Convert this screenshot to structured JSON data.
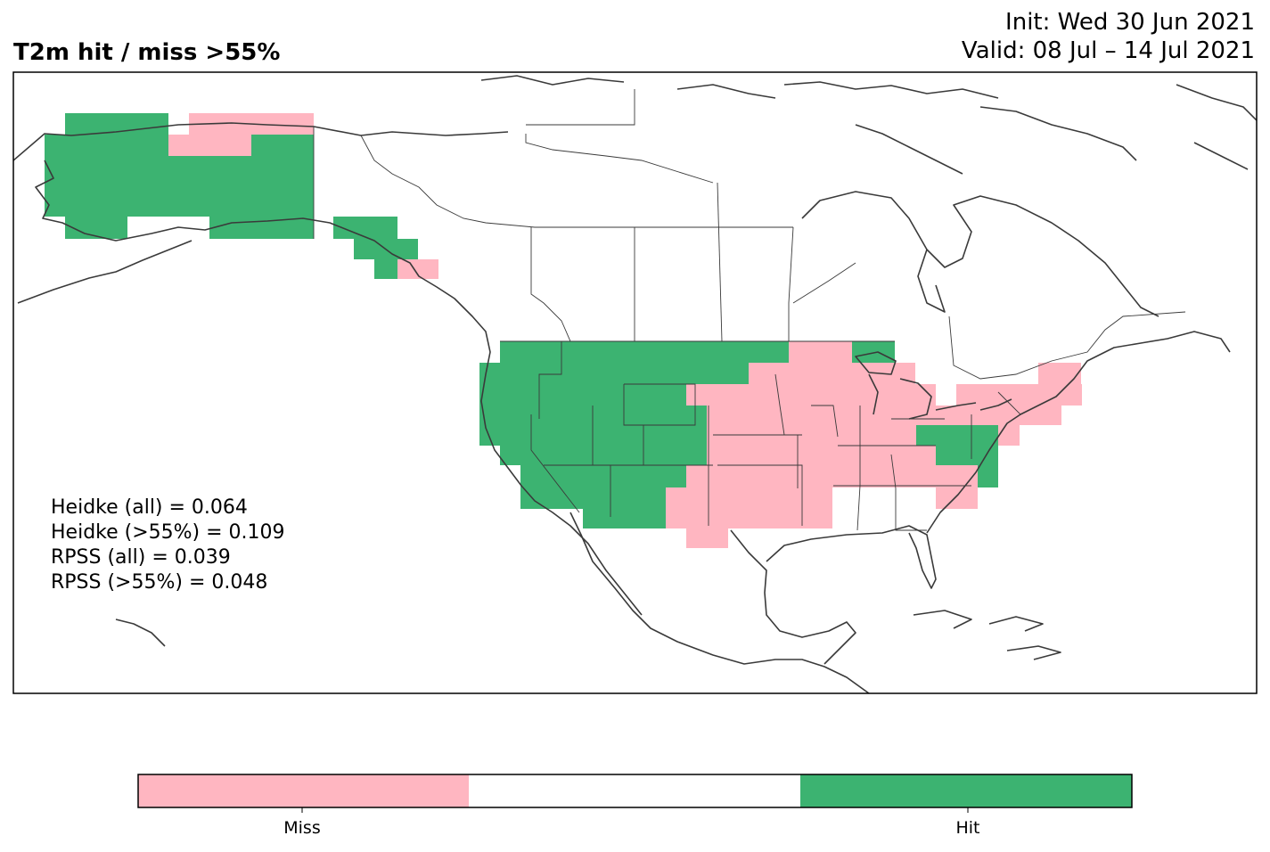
{
  "title": "T2m hit / miss  >55%",
  "init": "Init: Wed 30 Jun 2021",
  "valid": "Valid: 08 Jul – 14 Jul 2021",
  "stats": [
    "Heidke (all) = 0.064",
    "Heidke (>55%) = 0.109",
    "RPSS (all) = 0.039",
    "RPSS (>55%) = 0.048"
  ],
  "colors": {
    "miss": "#ffb6c1",
    "hit": "#3cb371",
    "neutral": "#ffffff",
    "coast": "#3a3a3a"
  },
  "colorbar": {
    "segments": [
      {
        "label": "Miss",
        "color": "#ffb6c1"
      },
      {
        "label": "",
        "color": "#ffffff"
      },
      {
        "label": "Hit",
        "color": "#3cb371"
      }
    ]
  }
}
